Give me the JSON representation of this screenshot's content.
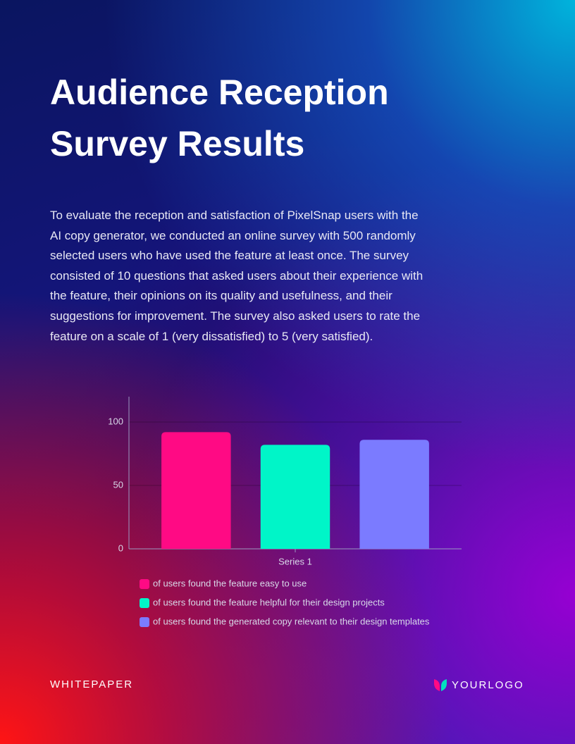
{
  "header": {
    "title": "Audience Reception Survey Results"
  },
  "body": {
    "paragraph": "To evaluate the reception and satisfaction of PixelSnap users with the AI copy generator, we conducted an online survey with 500 randomly selected users who have used the feature at least once. The survey consisted of 10 questions that asked users about their experience with the feature, their opinions on its quality and usefulness, and their suggestions for improvement. The survey also asked users to rate the feature on a scale of 1 (very dissatisfied) to 5 (very satisfied)."
  },
  "chart_data": {
    "type": "bar",
    "categories": [
      "Series 1"
    ],
    "series": [
      {
        "name": "of users found the feature easy to use",
        "color": "#ff0a84",
        "values": [
          92
        ]
      },
      {
        "name": "of users found the feature helpful for their design projects",
        "color": "#00f5c8",
        "values": [
          82
        ]
      },
      {
        "name": "of users found the generated copy relevant to their design templates",
        "color": "#7b7bff",
        "values": [
          86
        ]
      }
    ],
    "ylim": [
      0,
      120
    ],
    "yticks": [
      0,
      50,
      100
    ],
    "grid": true
  },
  "footer": {
    "label": "WHITEPAPER",
    "logo": "YOURLOGO"
  }
}
